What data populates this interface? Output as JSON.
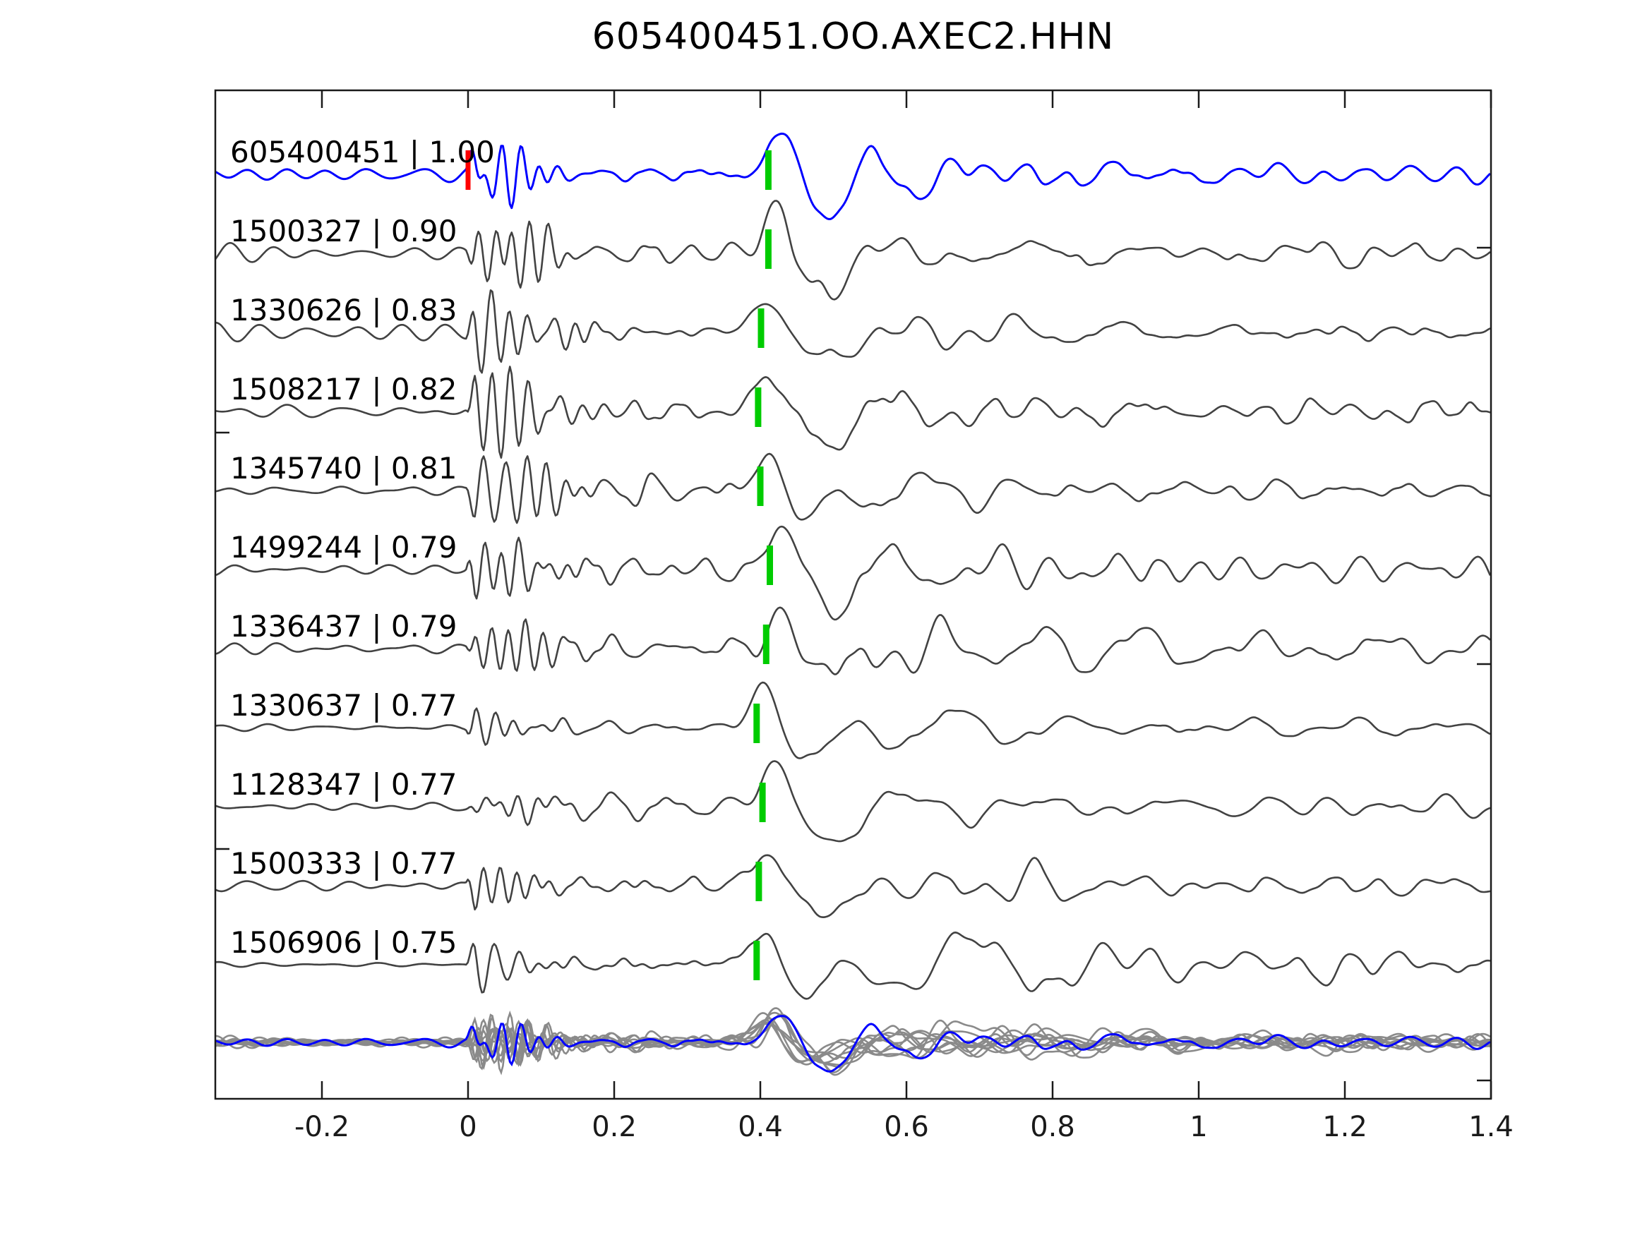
{
  "title": "605400451.OO.AXEC2.HHN",
  "colors": {
    "template_trace": "#0000ff",
    "match_trace": "#424242",
    "overlay_gray": "#8a8a8a",
    "overlay_blue": "#0000ff",
    "pick_marker": "#00cc00",
    "onset_marker": "#ff0000",
    "axis": "#1a1a1a",
    "text": "#000000"
  },
  "chart_data": {
    "type": "line",
    "title": "605400451.OO.AXEC2.HHN",
    "xlabel": "",
    "ylabel": "",
    "xlim": [
      -0.346,
      1.4
    ],
    "x_ticks": [
      -0.2,
      0,
      0.2,
      0.4,
      0.6,
      0.8,
      1,
      1.2,
      1.4
    ],
    "x_tick_labels": [
      "-0.2",
      "0",
      "0.2",
      "0.4",
      "0.6",
      "0.8",
      "1",
      "1.2",
      "1.4"
    ],
    "grid": false,
    "legend": false,
    "description": "Stacked seismic waveforms: template event 605400451 (blue, top) and ten matched detections (gray), each labeled 'id | cross-correlation'. Green dashes mark the aligned phase pick near t=0.4; red dash marks onset t=0 on the template. All traces are overplotted at the bottom (gray) with the template in blue.",
    "traces": [
      {
        "id": "605400451",
        "correlation": "1.00",
        "label": "605400451 | 1.00",
        "color": "#0000ff",
        "pick_time": 0.411,
        "onset_time": 0,
        "has_onset_marker": true,
        "role": "template",
        "synth": {
          "seed": 3,
          "pre": 9,
          "burst": 40,
          "mid": 13,
          "coda": 26,
          "tail": 11,
          "peak": 55,
          "lf": 1
        }
      },
      {
        "id": "1500327",
        "correlation": "0.90",
        "label": "1500327 | 0.90",
        "color": "#424242",
        "pick_time": 0.411,
        "has_onset_marker": false,
        "role": "detection",
        "synth": {
          "seed": 7,
          "pre": 9,
          "burst": 48,
          "mid": 15,
          "coda": 34,
          "tail": 12,
          "peak": 58,
          "lf": 1
        }
      },
      {
        "id": "1330626",
        "correlation": "0.83",
        "label": "1330626 | 0.83",
        "color": "#424242",
        "pick_time": 0.401,
        "has_onset_marker": false,
        "role": "detection",
        "synth": {
          "seed": 11,
          "pre": 10,
          "burst": 44,
          "mid": 13,
          "coda": 30,
          "tail": 11,
          "peak": 62,
          "lf": 1
        }
      },
      {
        "id": "1508217",
        "correlation": "0.82",
        "label": "1508217 | 0.82",
        "color": "#424242",
        "pick_time": 0.397,
        "has_onset_marker": false,
        "role": "detection",
        "synth": {
          "seed": 19,
          "pre": 7,
          "burst": 58,
          "mid": 14,
          "coda": 36,
          "tail": 13,
          "peak": 46,
          "lf": 1
        }
      },
      {
        "id": "1345740",
        "correlation": "0.81",
        "label": "1345740 | 0.81",
        "color": "#424242",
        "pick_time": 0.4,
        "has_onset_marker": false,
        "role": "detection",
        "synth": {
          "seed": 23,
          "pre": 7,
          "burst": 54,
          "mid": 15,
          "coda": 30,
          "tail": 15,
          "peak": 44,
          "lf": 1
        }
      },
      {
        "id": "1499244",
        "correlation": "0.79",
        "label": "1499244 | 0.79",
        "color": "#424242",
        "pick_time": 0.413,
        "has_onset_marker": false,
        "role": "detection",
        "synth": {
          "seed": 31,
          "pre": 13,
          "burst": 42,
          "mid": 20,
          "coda": 38,
          "tail": 17,
          "peak": 50,
          "lf": 1
        }
      },
      {
        "id": "1336437",
        "correlation": "0.79",
        "label": "1336437 | 0.79",
        "color": "#424242",
        "pick_time": 0.408,
        "has_onset_marker": false,
        "role": "detection",
        "synth": {
          "seed": 37,
          "pre": 9,
          "burst": 50,
          "mid": 18,
          "coda": 44,
          "tail": 13,
          "peak": 60,
          "lf": 1
        }
      },
      {
        "id": "1330637",
        "correlation": "0.77",
        "label": "1330637 | 0.77",
        "color": "#424242",
        "pick_time": 0.395,
        "has_onset_marker": false,
        "role": "detection",
        "synth": {
          "seed": 41,
          "pre": 6,
          "burst": 32,
          "mid": 11,
          "coda": 30,
          "tail": 11,
          "peak": 66,
          "lf": 1
        }
      },
      {
        "id": "1128347",
        "correlation": "0.77",
        "label": "1128347 | 0.77",
        "color": "#424242",
        "pick_time": 0.403,
        "has_onset_marker": false,
        "role": "detection",
        "synth": {
          "seed": 47,
          "pre": 8,
          "burst": 30,
          "mid": 11,
          "coda": 32,
          "tail": 11,
          "peak": 56,
          "lf": 1
        }
      },
      {
        "id": "1500333",
        "correlation": "0.77",
        "label": "1500333 | 0.77",
        "color": "#424242",
        "pick_time": 0.398,
        "has_onset_marker": false,
        "role": "detection",
        "synth": {
          "seed": 53,
          "pre": 9,
          "burst": 38,
          "mid": 15,
          "coda": 36,
          "tail": 13,
          "peak": 66,
          "lf": 1
        }
      },
      {
        "id": "1506906",
        "correlation": "0.75",
        "label": "1506906 | 0.75",
        "color": "#424242",
        "pick_time": 0.395,
        "has_onset_marker": false,
        "role": "detection",
        "synth": {
          "seed": 59,
          "pre": 4,
          "burst": 46,
          "mid": 8,
          "coda": 62,
          "tail": 22,
          "peak": 68,
          "lf": 0.62
        }
      }
    ],
    "overlay": {
      "present": true,
      "gray_color": "#8a8a8a",
      "blue_color": "#0000ff",
      "amplitude_scale": 0.65
    }
  }
}
